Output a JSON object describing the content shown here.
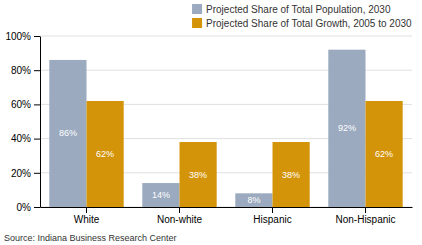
{
  "chart_data": {
    "type": "bar",
    "categories": [
      "White",
      "Non-white",
      "Hispanic",
      "Non-Hispanic"
    ],
    "series": [
      {
        "name": "Projected Share of Total Population, 2030",
        "color": "#9baabf",
        "values": [
          86,
          14,
          8,
          92
        ],
        "value_labels": [
          "86%",
          "14%",
          "8%",
          "92%"
        ]
      },
      {
        "name": "Projected Share of Total Growth, 2005 to 2030",
        "color": "#d4940a",
        "values": [
          62,
          38,
          38,
          62
        ],
        "value_labels": [
          "62%",
          "38%",
          "38%",
          "62%"
        ]
      }
    ],
    "ylim": [
      0,
      100
    ],
    "yticks": [
      {
        "value": 0,
        "label": "0%"
      },
      {
        "value": 20,
        "label": "20%"
      },
      {
        "value": 40,
        "label": "40%"
      },
      {
        "value": 60,
        "label": "60%"
      },
      {
        "value": 80,
        "label": "80%"
      },
      {
        "value": 100,
        "label": "100%"
      }
    ],
    "grid": true,
    "legend": "upper right",
    "data_labels": true,
    "annotations": [
      "Source: Indiana Business Research Center"
    ]
  }
}
